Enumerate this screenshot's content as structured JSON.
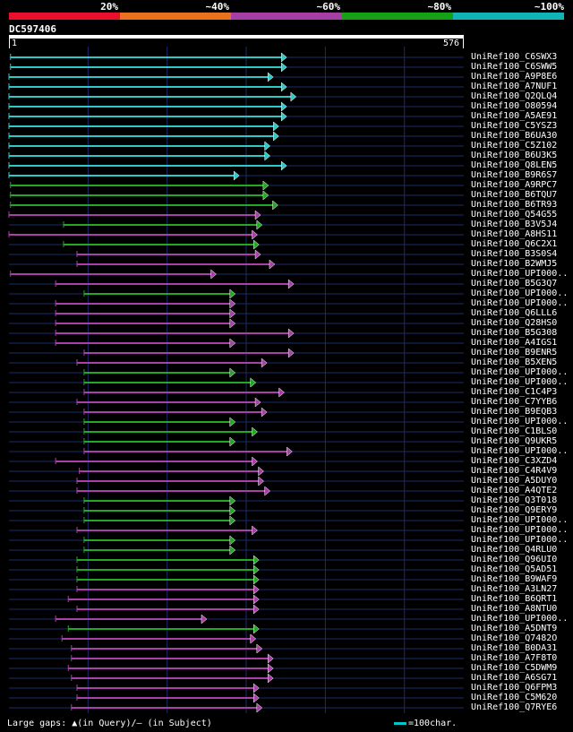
{
  "identity_scale": {
    "labels": [
      "20%",
      "~40%",
      "~60%",
      "~80%",
      "~100%"
    ],
    "colors": [
      "#e8102c",
      "#e8721e",
      "#a63ea6",
      "#16a016",
      "#10b4b4"
    ]
  },
  "query": {
    "id": "DC597406",
    "start": "1",
    "end": "576",
    "length": 576
  },
  "footer": {
    "text": "Large gaps: ▲(in Query)/– (in Subject)",
    "scale_text": "=100char.",
    "scale_color": "#00c8c8"
  },
  "colors": {
    "cyan": "#2ec8c8",
    "green": "#22a822",
    "magenta": "#a840a8",
    "background": "#000000",
    "grid": "#1c2c6c"
  },
  "chart_data": {
    "type": "alignment-map",
    "x_axis": {
      "min": 1,
      "max": 576
    },
    "hits": [
      {
        "name": "UniRef100_C6SWX3",
        "identity": "cyan",
        "qstart": 3,
        "qend": 351
      },
      {
        "name": "UniRef100_C6SWW5",
        "identity": "cyan",
        "qstart": 3,
        "qend": 351
      },
      {
        "name": "UniRef100_A9P8E6",
        "identity": "cyan",
        "qstart": 1,
        "qend": 334
      },
      {
        "name": "UniRef100_A7NUF1",
        "identity": "cyan",
        "qstart": 1,
        "qend": 351
      },
      {
        "name": "UniRef100_Q2QLQ4",
        "identity": "cyan",
        "qstart": 1,
        "qend": 363
      },
      {
        "name": "UniRef100_O80594",
        "identity": "cyan",
        "qstart": 1,
        "qend": 351
      },
      {
        "name": "UniRef100_A5AE91",
        "identity": "cyan",
        "qstart": 1,
        "qend": 351
      },
      {
        "name": "UniRef100_C5YSZ3",
        "identity": "cyan",
        "qstart": 1,
        "qend": 341
      },
      {
        "name": "UniRef100_B6UA30",
        "identity": "cyan",
        "qstart": 1,
        "qend": 341
      },
      {
        "name": "UniRef100_C5Z102",
        "identity": "cyan",
        "qstart": 1,
        "qend": 330
      },
      {
        "name": "UniRef100_B6U3K5",
        "identity": "cyan",
        "qstart": 1,
        "qend": 330
      },
      {
        "name": "UniRef100_Q8LEN5",
        "identity": "cyan",
        "qstart": 1,
        "qend": 351
      },
      {
        "name": "UniRef100_B9R6S7",
        "identity": "cyan",
        "qstart": 1,
        "qend": 291
      },
      {
        "name": "UniRef100_A9RPC7",
        "identity": "green",
        "qstart": 3,
        "qend": 328
      },
      {
        "name": "UniRef100_B6TQU7",
        "identity": "green",
        "qstart": 3,
        "qend": 328
      },
      {
        "name": "UniRef100_B6TR93",
        "identity": "green",
        "qstart": 3,
        "qend": 340
      },
      {
        "name": "UniRef100_Q54G55",
        "identity": "magenta",
        "qstart": 1,
        "qend": 318
      },
      {
        "name": "UniRef100_B3V5J4",
        "identity": "green",
        "qstart": 70,
        "qend": 320
      },
      {
        "name": "UniRef100_A8HS11",
        "identity": "magenta",
        "qstart": 1,
        "qend": 314
      },
      {
        "name": "UniRef100_Q6C2X1",
        "identity": "green",
        "qstart": 70,
        "qend": 316
      },
      {
        "name": "UniRef100_B3S0S4",
        "identity": "magenta",
        "qstart": 87,
        "qend": 318
      },
      {
        "name": "UniRef100_B2WMJ5",
        "identity": "magenta",
        "qstart": 87,
        "qend": 336
      },
      {
        "name": "UniRef100_UPI000..",
        "identity": "magenta",
        "qstart": 3,
        "qend": 262
      },
      {
        "name": "UniRef100_B5G3Q7",
        "identity": "magenta",
        "qstart": 60,
        "qend": 360
      },
      {
        "name": "UniRef100_UPI000..",
        "identity": "green",
        "qstart": 96,
        "qend": 286
      },
      {
        "name": "UniRef100_UPI000..",
        "identity": "magenta",
        "qstart": 60,
        "qend": 286
      },
      {
        "name": "UniRef100_Q6LLL6",
        "identity": "magenta",
        "qstart": 60,
        "qend": 286
      },
      {
        "name": "UniRef100_Q28HS0",
        "identity": "magenta",
        "qstart": 60,
        "qend": 286
      },
      {
        "name": "UniRef100_B5G308",
        "identity": "magenta",
        "qstart": 60,
        "qend": 360
      },
      {
        "name": "UniRef100_A4IGS1",
        "identity": "magenta",
        "qstart": 60,
        "qend": 286
      },
      {
        "name": "UniRef100_B9ENR5",
        "identity": "magenta",
        "qstart": 96,
        "qend": 360
      },
      {
        "name": "UniRef100_B5XEN5",
        "identity": "magenta",
        "qstart": 87,
        "qend": 326
      },
      {
        "name": "UniRef100_UPI000..",
        "identity": "green",
        "qstart": 96,
        "qend": 286
      },
      {
        "name": "UniRef100_UPI000..",
        "identity": "green",
        "qstart": 96,
        "qend": 312
      },
      {
        "name": "UniRef100_C1C4P3",
        "identity": "magenta",
        "qstart": 96,
        "qend": 348
      },
      {
        "name": "UniRef100_C7YYB6",
        "identity": "magenta",
        "qstart": 87,
        "qend": 318
      },
      {
        "name": "UniRef100_B9EQB3",
        "identity": "magenta",
        "qstart": 96,
        "qend": 326
      },
      {
        "name": "UniRef100_UPI000..",
        "identity": "green",
        "qstart": 96,
        "qend": 286
      },
      {
        "name": "UniRef100_C1BLS0",
        "identity": "green",
        "qstart": 96,
        "qend": 314
      },
      {
        "name": "UniRef100_Q9UKR5",
        "identity": "green",
        "qstart": 96,
        "qend": 286
      },
      {
        "name": "UniRef100_UPI000..",
        "identity": "magenta",
        "qstart": 96,
        "qend": 358
      },
      {
        "name": "UniRef100_C3XZD4",
        "identity": "magenta",
        "qstart": 60,
        "qend": 314
      },
      {
        "name": "UniRef100_C4R4V9",
        "identity": "magenta",
        "qstart": 90,
        "qend": 322
      },
      {
        "name": "UniRef100_A5DUY0",
        "identity": "magenta",
        "qstart": 87,
        "qend": 322
      },
      {
        "name": "UniRef100_A4QTE2",
        "identity": "magenta",
        "qstart": 87,
        "qend": 330
      },
      {
        "name": "UniRef100_Q3T018",
        "identity": "green",
        "qstart": 96,
        "qend": 286
      },
      {
        "name": "UniRef100_Q9ERY9",
        "identity": "green",
        "qstart": 96,
        "qend": 286
      },
      {
        "name": "UniRef100_UPI000..",
        "identity": "green",
        "qstart": 96,
        "qend": 286
      },
      {
        "name": "UniRef100_UPI000..",
        "identity": "magenta",
        "qstart": 87,
        "qend": 314
      },
      {
        "name": "UniRef100_UPI000..",
        "identity": "green",
        "qstart": 96,
        "qend": 286
      },
      {
        "name": "UniRef100_Q4RLU0",
        "identity": "green",
        "qstart": 96,
        "qend": 286
      },
      {
        "name": "UniRef100_Q96UI0",
        "identity": "green",
        "qstart": 87,
        "qend": 316
      },
      {
        "name": "UniRef100_Q5AD51",
        "identity": "green",
        "qstart": 87,
        "qend": 316
      },
      {
        "name": "UniRef100_B9WAF9",
        "identity": "green",
        "qstart": 87,
        "qend": 316
      },
      {
        "name": "UniRef100_A3LN27",
        "identity": "magenta",
        "qstart": 87,
        "qend": 316
      },
      {
        "name": "UniRef100_B6QRT1",
        "identity": "magenta",
        "qstart": 76,
        "qend": 316
      },
      {
        "name": "UniRef100_A8NTU0",
        "identity": "magenta",
        "qstart": 87,
        "qend": 316
      },
      {
        "name": "UniRef100_UPI000..",
        "identity": "magenta",
        "qstart": 60,
        "qend": 250
      },
      {
        "name": "UniRef100_A5DNT9",
        "identity": "green",
        "qstart": 76,
        "qend": 316
      },
      {
        "name": "UniRef100_Q7482O",
        "identity": "magenta",
        "qstart": 68,
        "qend": 312
      },
      {
        "name": "UniRef100_B0DA31",
        "identity": "magenta",
        "qstart": 80,
        "qend": 320
      },
      {
        "name": "UniRef100_A7F8T0",
        "identity": "magenta",
        "qstart": 80,
        "qend": 334
      },
      {
        "name": "UniRef100_C5DWM9",
        "identity": "magenta",
        "qstart": 76,
        "qend": 334
      },
      {
        "name": "UniRef100_A6SG71",
        "identity": "magenta",
        "qstart": 80,
        "qend": 334
      },
      {
        "name": "UniRef100_Q6FPM3",
        "identity": "magenta",
        "qstart": 87,
        "qend": 316
      },
      {
        "name": "UniRef100_C5M620",
        "identity": "magenta",
        "qstart": 87,
        "qend": 316
      },
      {
        "name": "UniRef100_Q7RYE6",
        "identity": "magenta",
        "qstart": 80,
        "qend": 320
      }
    ]
  }
}
